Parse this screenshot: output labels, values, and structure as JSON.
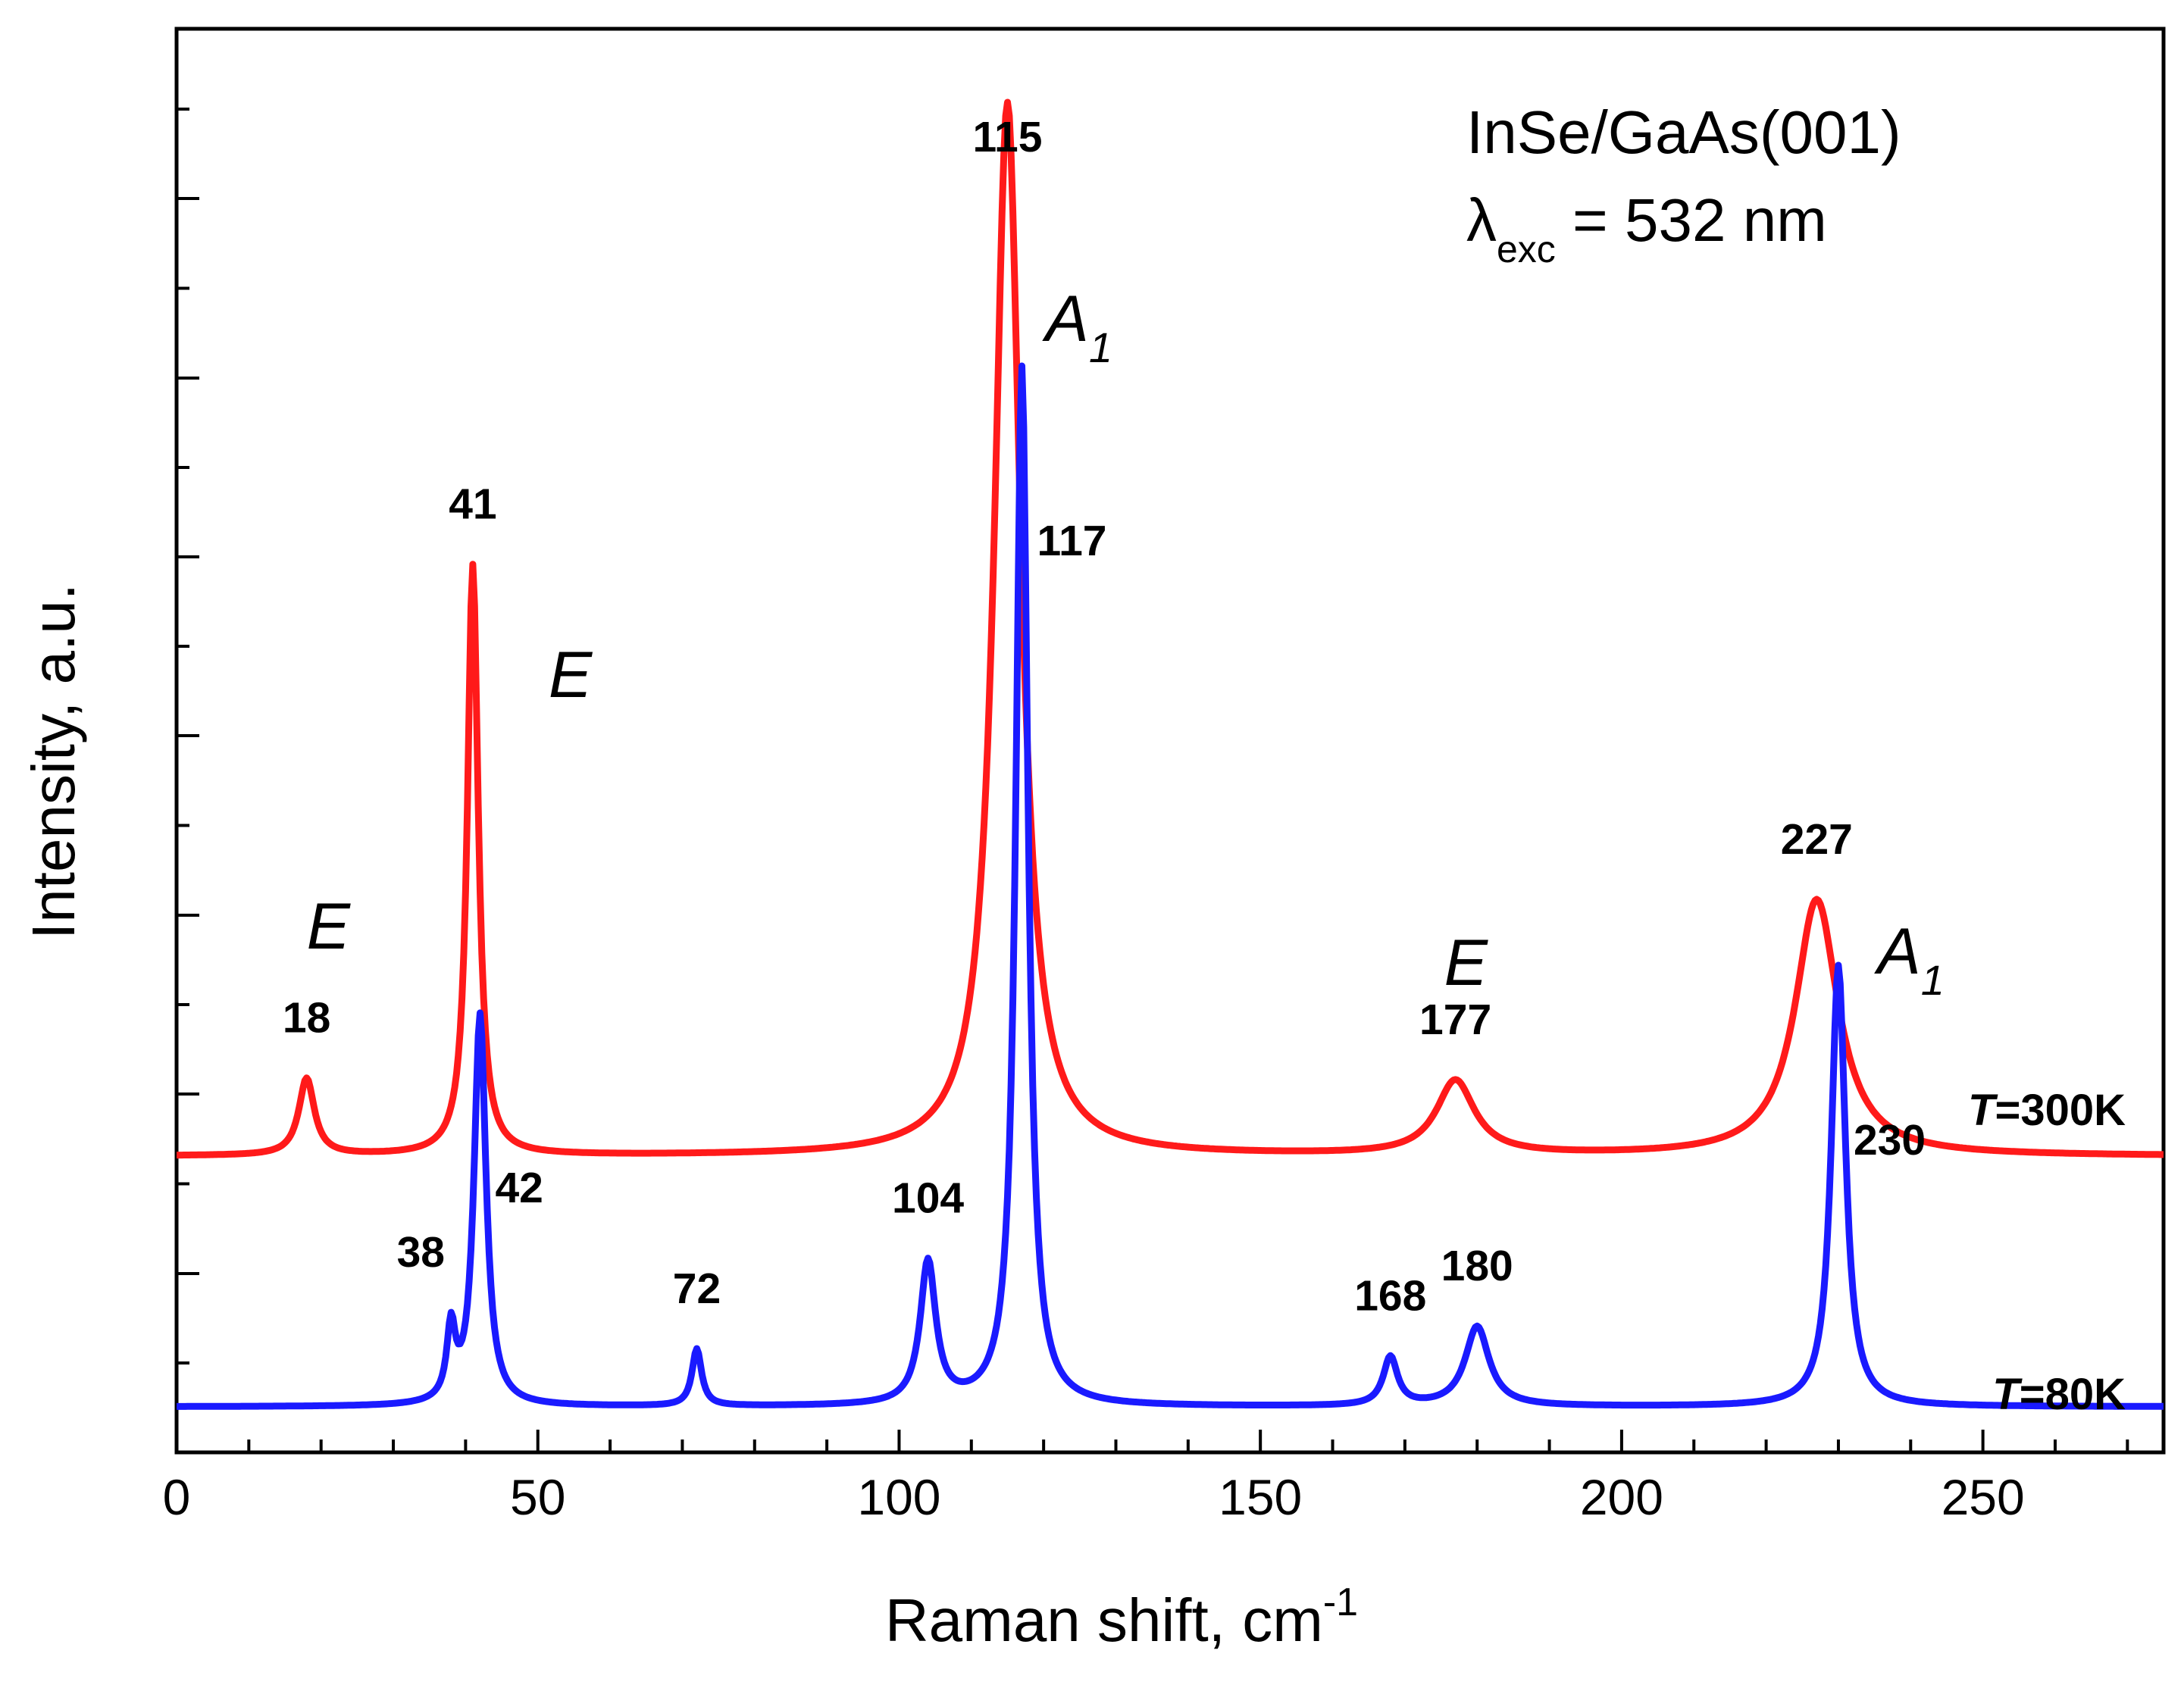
{
  "chart_data": {
    "type": "line",
    "title": "",
    "xlabel": "Raman shift, cm",
    "xlabel_superscript": "-1",
    "ylabel": "Intensity, a.u.",
    "xlim": [
      0,
      275
    ],
    "ylim": [
      0,
      100
    ],
    "x_ticks": [
      0,
      50,
      100,
      150,
      200,
      250
    ],
    "x_tick_labels": [
      "0",
      "50",
      "100",
      "150",
      "200",
      "250"
    ],
    "y_tick_labels_shown": false,
    "grid": false,
    "annotation": {
      "sample": "InSe/GaAs(001)",
      "lambda_symbol": "λ",
      "lambda_subscript": "exc",
      "lambda_value": " = 532 nm"
    },
    "series": [
      {
        "name": "T=300K",
        "temp_prefix": "T",
        "temp_value": "=300K",
        "color": "#ff1a1a",
        "baseline": 20.8,
        "peaks": [
          {
            "x": 18,
            "height": 5.4,
            "width": 1.3
          },
          {
            "x": 41,
            "height": 41.5,
            "width": 0.9
          },
          {
            "x": 115,
            "height": 74.0,
            "width": 2.2
          },
          {
            "x": 177,
            "height": 5.2,
            "width": 3.2
          },
          {
            "x": 227,
            "height": 18.0,
            "width": 3.6
          }
        ],
        "peak_labels": [
          "18",
          "41",
          "115",
          "177",
          "227"
        ]
      },
      {
        "name": "T=80K",
        "temp_prefix": "T",
        "temp_value": "=80K",
        "color": "#1a1aff",
        "baseline": 3.2,
        "peaks": [
          {
            "x": 38,
            "height": 5.0,
            "width": 0.7
          },
          {
            "x": 42,
            "height": 27.5,
            "width": 1.0
          },
          {
            "x": 72,
            "height": 4.0,
            "width": 0.8
          },
          {
            "x": 104,
            "height": 10.0,
            "width": 1.3
          },
          {
            "x": 117,
            "height": 73.0,
            "width": 1.0
          },
          {
            "x": 168,
            "height": 3.4,
            "width": 1.2
          },
          {
            "x": 180,
            "height": 5.6,
            "width": 2.0
          },
          {
            "x": 230,
            "height": 31.0,
            "width": 1.2
          }
        ],
        "peak_labels": [
          "38",
          "42",
          "72",
          "104",
          "117",
          "168",
          "180",
          "230"
        ]
      }
    ],
    "mode_labels": [
      {
        "text": "E",
        "near": 18
      },
      {
        "text": "E",
        "near": 41
      },
      {
        "text": "A",
        "subscript": "1",
        "near": 115
      },
      {
        "text": "E",
        "near": 177
      },
      {
        "text": "A",
        "subscript": "1",
        "near": 227
      }
    ]
  }
}
